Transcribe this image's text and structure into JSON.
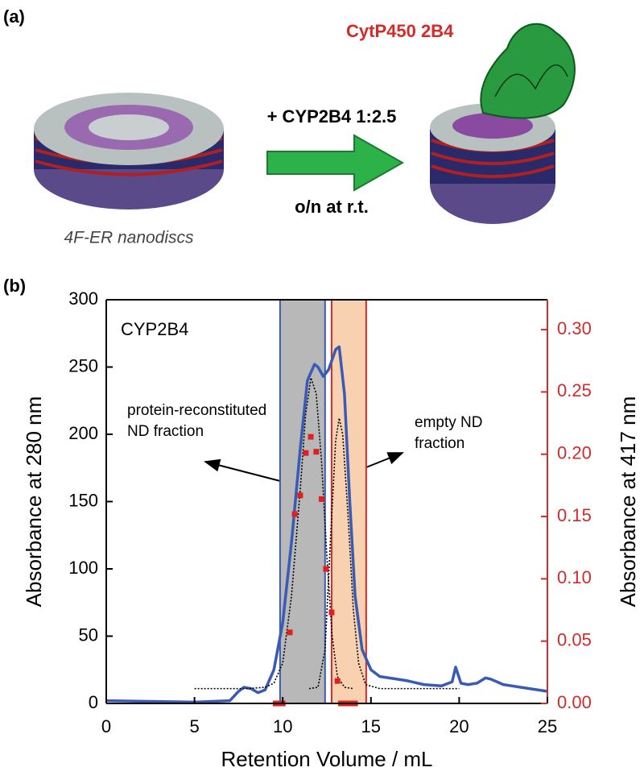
{
  "panel_a": {
    "label": "(a)",
    "protein_label": "CytP450 2B4",
    "step_top": "+ CYP2B4 1:2.5",
    "step_bottom": "o/n at r.t.",
    "disc_label": "4F-ER nanodiscs"
  },
  "panel_b_label": "(b)",
  "chart_data": {
    "type": "line",
    "x_label": "Retention Volume / mL",
    "y_label": "Absorbance at 280 nm",
    "y2_label": "Absorbance at 417 nm",
    "xlim": [
      0,
      25
    ],
    "xticks": [
      0,
      5,
      10,
      15,
      20,
      25
    ],
    "ylim": [
      0,
      300
    ],
    "yticks": [
      0,
      50,
      100,
      150,
      200,
      250,
      300
    ],
    "y2lim": [
      0,
      0.324
    ],
    "y2ticks": [
      {
        "value": 0,
        "label": "0.00"
      },
      {
        "value": 0.05,
        "label": "0.05"
      },
      {
        "value": 0.1,
        "label": "0.10"
      },
      {
        "value": 0.15,
        "label": "0.15"
      },
      {
        "value": 0.2,
        "label": "0.20"
      },
      {
        "value": 0.25,
        "label": "0.25"
      },
      {
        "value": 0.3,
        "label": "0.30"
      }
    ],
    "y2_color": "#d42a2a",
    "regions": [
      {
        "x": [
          9.85,
          12.4
        ],
        "color": "#b8b8b8",
        "edge_color": "#3a5bb5"
      },
      {
        "x": [
          12.77,
          14.73
        ],
        "color": "#f8d2b0",
        "edge_color": "#d42a2a"
      }
    ],
    "series": [
      {
        "style": "solid",
        "color": "#3a5bb5",
        "x": [
          0,
          5,
          7,
          7.5,
          7.8,
          8.2,
          8.6,
          9,
          9.5,
          10,
          10.5,
          11,
          11.4,
          11.8,
          12,
          12.3,
          12.6,
          13,
          13.2,
          13.5,
          13.8,
          14.1,
          14.5,
          15,
          15.5,
          16,
          17,
          18,
          19,
          19.6,
          19.8,
          20.1,
          20.5,
          21,
          21.5,
          21.8,
          22.5,
          23.5,
          25
        ],
        "values": [
          2,
          1,
          2,
          9,
          12,
          11,
          8,
          10,
          25,
          60,
          120,
          190,
          240,
          252,
          250,
          243,
          248,
          263,
          265,
          230,
          150,
          80,
          40,
          25,
          20,
          19,
          17,
          14,
          13,
          16,
          27,
          15,
          14,
          15,
          19,
          18,
          14,
          12,
          9
        ]
      },
      {
        "style": "dotted",
        "color": "#000000",
        "x": [
          5,
          8,
          9,
          9.5,
          10,
          10.5,
          11,
          11.3,
          11.6,
          11.9,
          12.2,
          12.5,
          12.8,
          13.1,
          13.5,
          14
        ],
        "values": [
          11,
          11,
          12,
          15,
          30,
          80,
          160,
          215,
          242,
          230,
          180,
          110,
          50,
          20,
          12,
          11
        ]
      },
      {
        "style": "dotted",
        "color": "#000000",
        "x": [
          11.5,
          12,
          12.4,
          12.7,
          13,
          13.2,
          13.4,
          13.7,
          14,
          14.3,
          14.7,
          15.5,
          20
        ],
        "values": [
          11,
          12,
          40,
          120,
          195,
          212,
          200,
          140,
          70,
          30,
          14,
          11,
          11
        ]
      },
      {
        "type": "scatter",
        "axis": "y2",
        "color": "#e02020",
        "x": [
          9.6,
          9.8,
          10.0,
          10.4,
          10.68,
          10.99,
          11.31,
          11.59,
          11.9,
          12.2,
          12.45,
          12.77,
          13.1,
          13.3,
          13.5,
          13.7,
          13.9,
          14.1
        ],
        "values": [
          0,
          0,
          0,
          0.057,
          0.152,
          0.167,
          0.201,
          0.214,
          0.202,
          0.164,
          0.108,
          0.073,
          0.018,
          0,
          0,
          0,
          0,
          0
        ]
      }
    ],
    "annotations": [
      {
        "lines": [
          "CYP2B4"
        ]
      },
      {
        "lines": [
          "protein-reconstituted",
          "ND fraction"
        ]
      },
      {
        "lines": [
          "empty ND",
          "fraction"
        ]
      }
    ]
  }
}
